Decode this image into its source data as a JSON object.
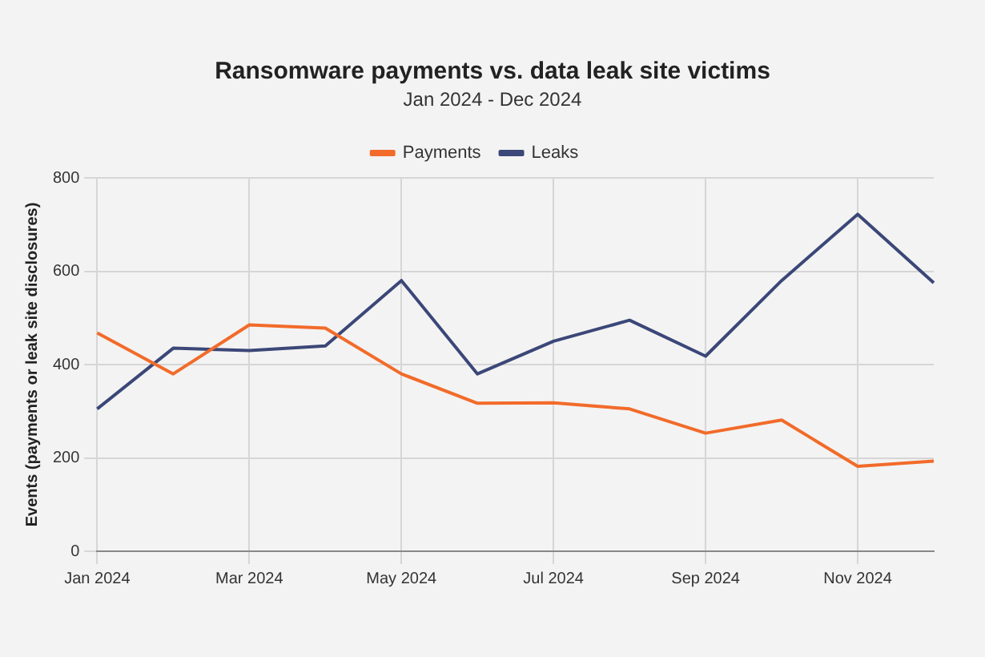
{
  "chart_data": {
    "type": "line",
    "title": "Ransomware payments vs. data leak site victims",
    "subtitle": "Jan 2024 - Dec 2024",
    "ylabel": "Events (payments or leak site disclosures)",
    "categories": [
      "Jan 2024",
      null,
      "Mar 2024",
      null,
      "May 2024",
      null,
      "Jul 2024",
      null,
      "Sep 2024",
      null,
      "Nov 2024",
      null
    ],
    "series": [
      {
        "name": "Payments",
        "color": "#f26b2a",
        "values": [
          468,
          380,
          485,
          478,
          380,
          317,
          318,
          305,
          253,
          281,
          182,
          193
        ]
      },
      {
        "name": "Leaks",
        "color": "#3b4778",
        "values": [
          305,
          435,
          430,
          440,
          580,
          380,
          450,
          495,
          418,
          580,
          722,
          575
        ]
      }
    ],
    "ylim": [
      0,
      800
    ],
    "yticks": [
      0,
      200,
      400,
      600,
      800
    ],
    "grid": true,
    "legend": "top",
    "marker": "none",
    "line_style": "solid"
  }
}
